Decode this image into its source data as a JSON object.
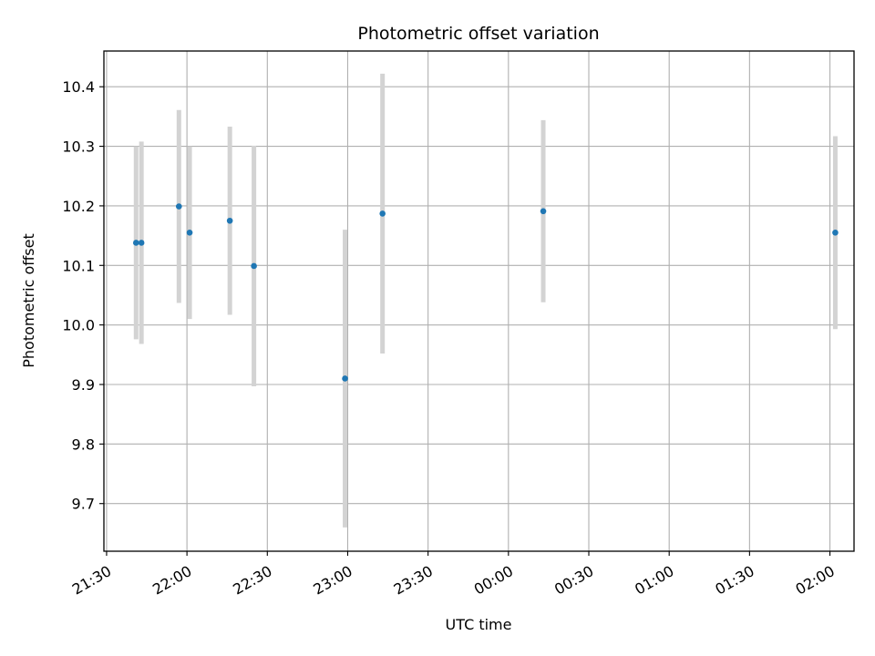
{
  "chart_data": {
    "type": "scatter",
    "title": "Photometric offset variation",
    "xlabel": "UTC time",
    "ylabel": "Photometric offset",
    "x_ticks": [
      "21:30",
      "22:00",
      "22:30",
      "23:00",
      "23:30",
      "00:00",
      "00:30",
      "01:00",
      "01:30",
      "02:00"
    ],
    "y_ticks": [
      "9.7",
      "9.8",
      "9.9",
      "10.0",
      "10.1",
      "10.2",
      "10.3",
      "10.4"
    ],
    "ylim": [
      9.62,
      10.46
    ],
    "xlim": [
      "21:29",
      "02:09"
    ],
    "grid": true,
    "marker_color": "#1f77b4",
    "errorbar_color": "#d3d3d3",
    "points": [
      {
        "x": "21:41",
        "y": 10.138,
        "err": 0.162
      },
      {
        "x": "21:43",
        "y": 10.138,
        "err": 0.17
      },
      {
        "x": "21:57",
        "y": 10.199,
        "err": 0.162
      },
      {
        "x": "22:01",
        "y": 10.155,
        "err": 0.145
      },
      {
        "x": "22:16",
        "y": 10.175,
        "err": 0.158
      },
      {
        "x": "22:25",
        "y": 10.099,
        "err": 0.202
      },
      {
        "x": "22:59",
        "y": 9.91,
        "err": 0.25
      },
      {
        "x": "23:13",
        "y": 10.187,
        "err": 0.235
      },
      {
        "x": "00:13",
        "y": 10.191,
        "err": 0.153
      },
      {
        "x": "02:02",
        "y": 10.155,
        "err": 0.162
      }
    ]
  }
}
